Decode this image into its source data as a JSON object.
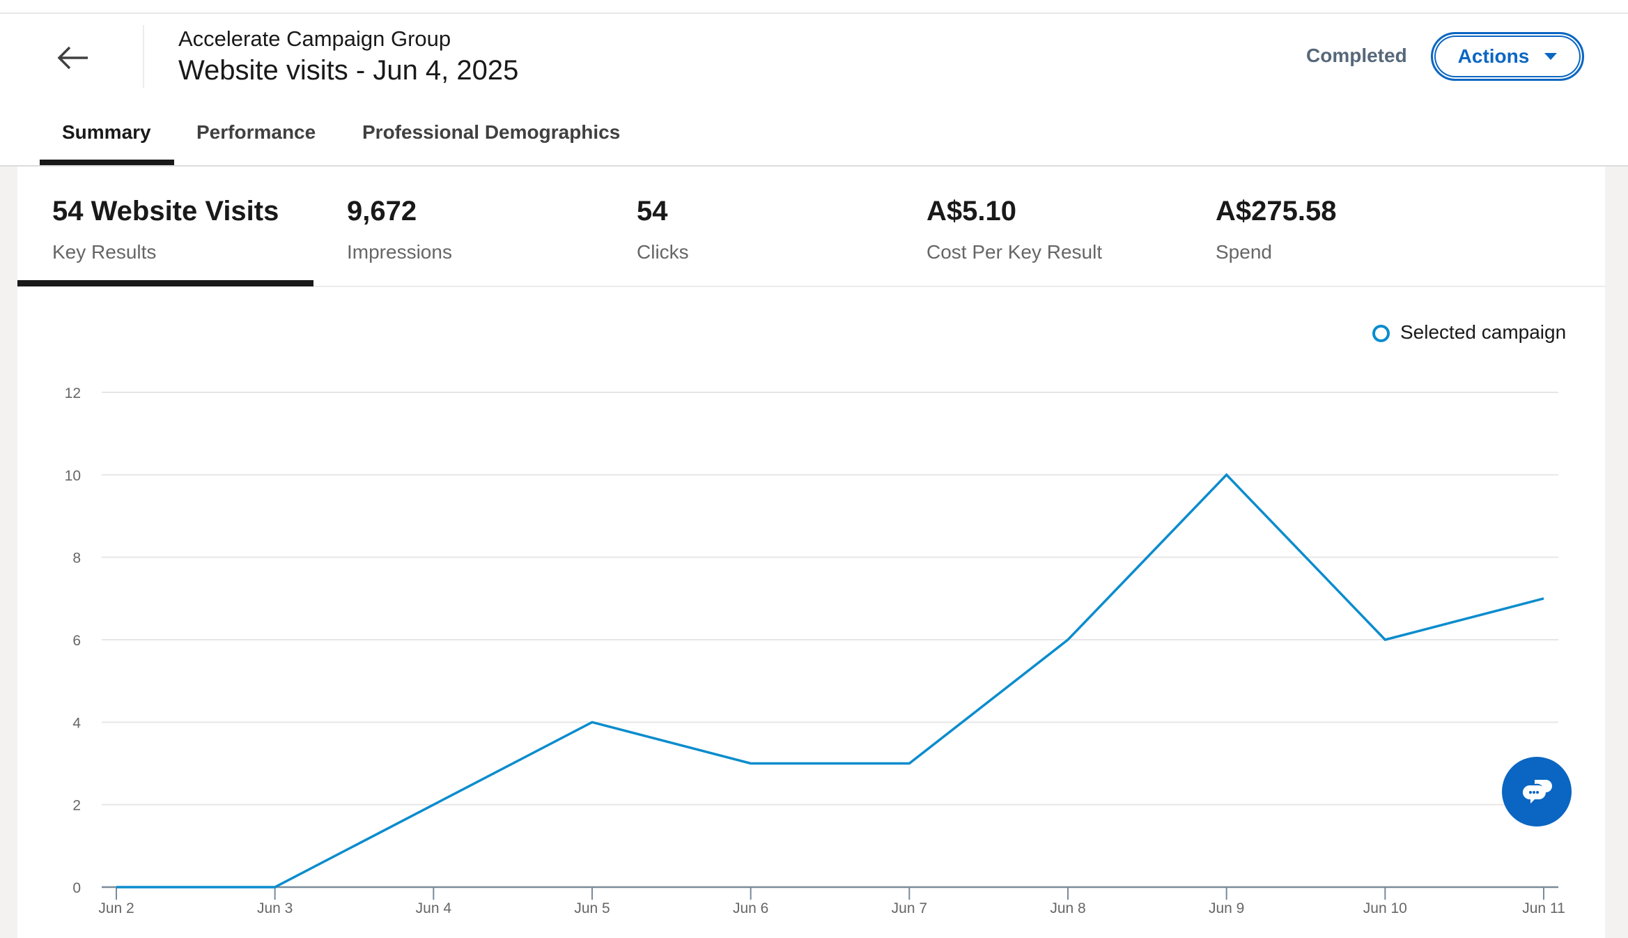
{
  "header": {
    "group": "Accelerate Campaign Group",
    "title": "Website visits - Jun 4, 2025",
    "status": "Completed",
    "actions_label": "Actions"
  },
  "tabs": [
    {
      "label": "Summary"
    },
    {
      "label": "Performance"
    },
    {
      "label": "Professional Demographics"
    }
  ],
  "metrics": [
    {
      "value": "54 Website Visits",
      "label": "Key Results"
    },
    {
      "value": "9,672",
      "label": "Impressions"
    },
    {
      "value": "54",
      "label": "Clicks"
    },
    {
      "value": "A$5.10",
      "label": "Cost Per Key Result"
    },
    {
      "value": "A$275.58",
      "label": "Spend"
    }
  ],
  "chart_data": {
    "type": "line",
    "categories": [
      "Jun 2",
      "Jun 3",
      "Jun 4",
      "Jun 5",
      "Jun 6",
      "Jun 7",
      "Jun 8",
      "Jun 9",
      "Jun 10",
      "Jun 11"
    ],
    "series": [
      {
        "name": "Selected campaign",
        "values": [
          0,
          0,
          2,
          4,
          3,
          3,
          6,
          10,
          6,
          7
        ],
        "color": "#0b8ccd"
      }
    ],
    "yticks": [
      "0",
      "2",
      "4",
      "6",
      "8",
      "10",
      "12"
    ],
    "ylim": [
      0,
      12
    ],
    "legend": "top-right",
    "grid": true
  }
}
